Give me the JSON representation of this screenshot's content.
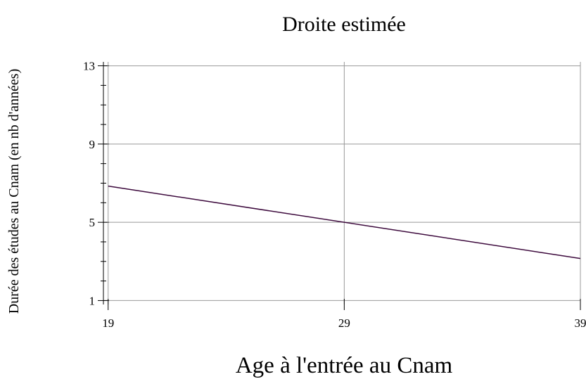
{
  "chart_data": {
    "type": "line",
    "title": "Droite estimée",
    "x_label": "Age à l'entrée au Cnam",
    "y_label": "Durée des études au Cnam (en nb d'années)",
    "x": [
      19,
      39
    ],
    "series": [
      {
        "name": "Droite estimée",
        "color": "#3d0a3d",
        "values": [
          6.85,
          3.15
        ]
      }
    ],
    "xlim": [
      18.8,
      39
    ],
    "ylim": [
      0.8,
      13.2
    ],
    "xticks": [
      19,
      29,
      39
    ],
    "yticks": [
      1,
      5,
      9,
      13
    ],
    "yminorticks": [
      2,
      3,
      4,
      6,
      7,
      8,
      10,
      11,
      12
    ],
    "grid": true
  }
}
